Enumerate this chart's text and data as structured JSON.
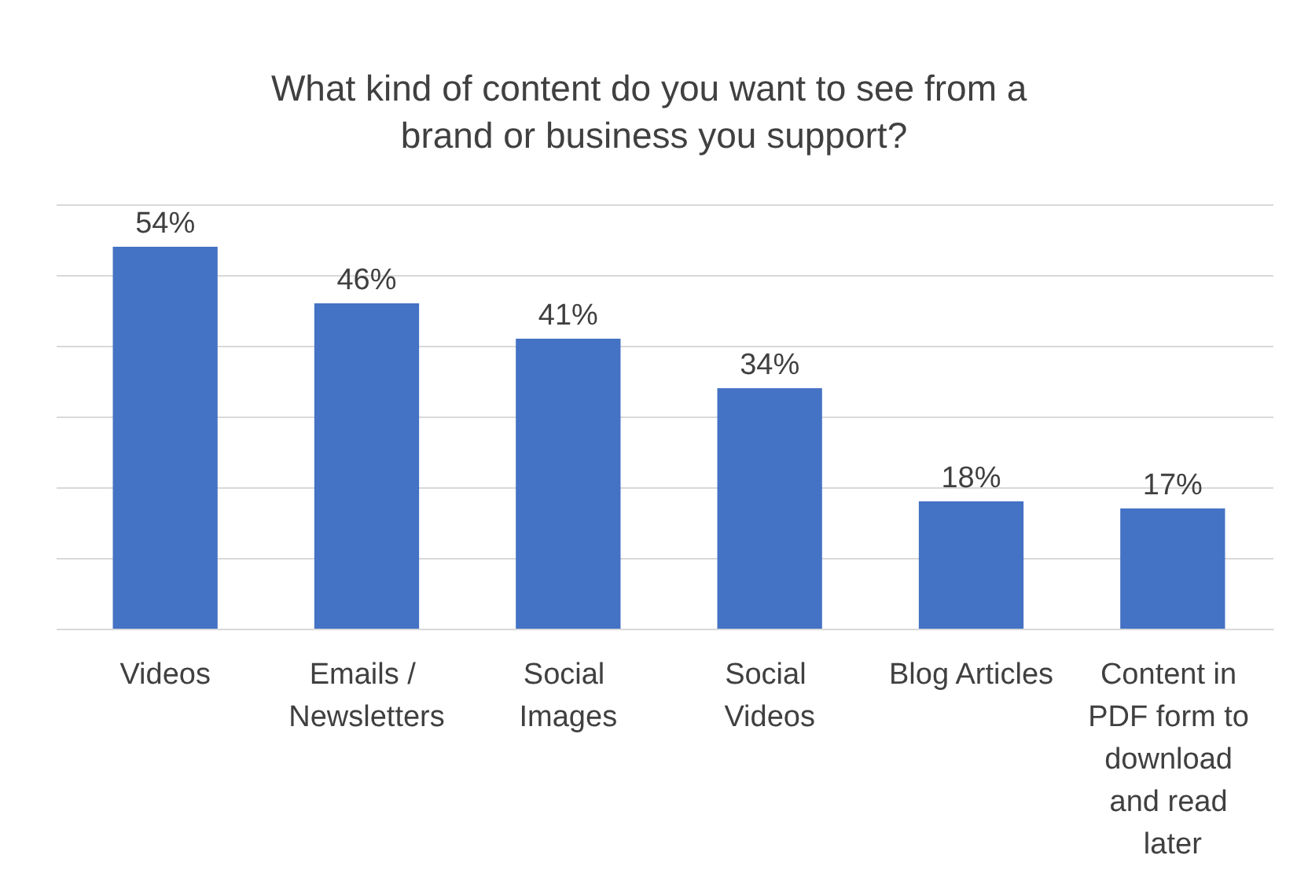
{
  "chart_data": {
    "type": "bar",
    "title": "What kind of content do you want to see from a brand or business you support?",
    "categories": [
      "Videos",
      "Emails / Newsletters",
      "Social Images",
      "Social Videos",
      "Blog Articles",
      "Content in PDF form to download and read later"
    ],
    "values": [
      54,
      46,
      41,
      34,
      18,
      17
    ],
    "value_labels": [
      "54%",
      "46%",
      "41%",
      "34%",
      "18%",
      "17%"
    ],
    "color": "#4472c4",
    "ylim": [
      0,
      60
    ],
    "yticks": [
      0,
      10,
      20,
      30,
      40,
      50,
      60
    ],
    "grid": "y",
    "tick_labels": "x"
  }
}
